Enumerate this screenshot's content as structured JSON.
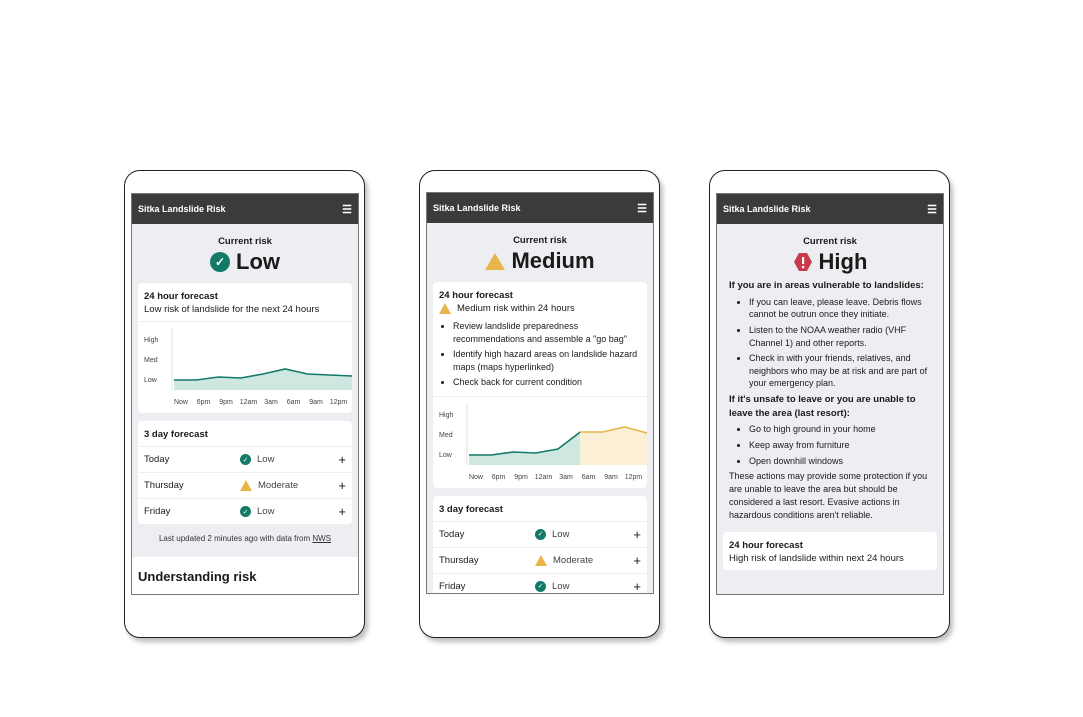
{
  "app_title": "Sitka Landslide Risk",
  "current_label": "Current risk",
  "colors": {
    "low": "#137a68",
    "medium": "#e8b54a",
    "high": "#c8394a",
    "header": "#3b3b3b"
  },
  "icons": {
    "menu": "hamburger-icon",
    "low": "check-circle-icon",
    "medium": "warning-triangle-icon",
    "high": "exclamation-octagon-icon",
    "expand": "plus-icon"
  },
  "chart_axis": {
    "y_labels": [
      "High",
      "Med",
      "Low"
    ],
    "x_labels": [
      "Now",
      "6pm",
      "9pm",
      "12am",
      "3am",
      "6am",
      "9am",
      "12pm"
    ]
  },
  "low": {
    "level": "Low",
    "forecast_title": "24 hour forecast",
    "forecast_text": "Low risk of landslide for the next 24 hours",
    "chart_values": [
      0.6,
      0.6,
      0.75,
      0.7,
      0.9,
      1.15,
      0.9,
      0.85,
      0.8
    ],
    "three_day_title": "3 day forecast",
    "days": [
      {
        "day": "Today",
        "risk": "Low"
      },
      {
        "day": "Thursday",
        "risk": "Moderate"
      },
      {
        "day": "Friday",
        "risk": "Low"
      }
    ],
    "updated": "Last updated 2 minutes ago with data from",
    "source": "NWS",
    "understanding": "Understanding risk"
  },
  "medium": {
    "level": "Medium",
    "forecast_title": "24 hour forecast",
    "forecast_text": "Medium risk within 24 hours",
    "bullets": [
      "Review landslide preparedness recommendations and assemble a \"go bag\"",
      "Identify high hazard areas on landslide hazard maps (maps hyperlinked)",
      "Check back for current condition"
    ],
    "chart_values": [
      0.6,
      0.6,
      0.75,
      0.7,
      0.9,
      1.75,
      1.75,
      2.0,
      1.7
    ],
    "three_day_title": "3 day forecast",
    "days": [
      {
        "day": "Today",
        "risk": "Low"
      },
      {
        "day": "Thursday",
        "risk": "Moderate"
      },
      {
        "day": "Friday",
        "risk": "Low"
      }
    ]
  },
  "high": {
    "level": "High",
    "heading1": "If you are in areas vulnerable to landslides:",
    "bullets1": [
      "If you can leave, please leave. Debris flows cannot be outrun once they initiate.",
      "Listen to the NOAA weather radio (VHF Channel 1) and other reports.",
      "Check in with your friends, relatives, and neighbors who may be at risk and are part of your emergency plan."
    ],
    "heading2": "If it's unsafe to leave or you are unable to leave the area (last resort):",
    "bullets2": [
      "Go to high ground in your home",
      "Keep away from furniture",
      "Open downhill windows"
    ],
    "note": "These actions may provide some protection if you are unable to leave the area but should be considered a last resort. Evasive actions in hazardous conditions aren't reliable.",
    "forecast_title": "24 hour forecast",
    "forecast_text": "High risk of landslide within next 24 hours"
  }
}
